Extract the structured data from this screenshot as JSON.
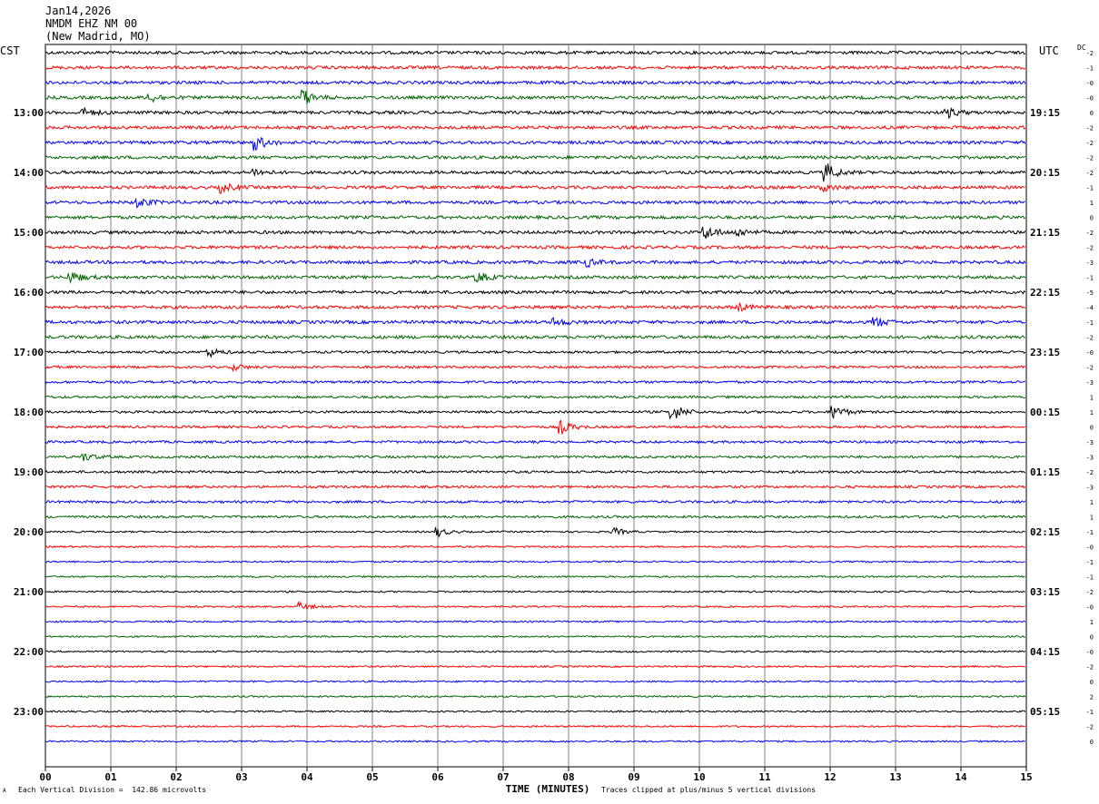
{
  "header": {
    "date": "Jan14,2026",
    "station": "NMDM EHZ NM 00",
    "location": "(New Madrid, MO)"
  },
  "left_tz": "CST",
  "right_tz": "UTC",
  "dc_label": "DC",
  "footer": {
    "scale_note": "Each Vertical Division =  142.86 microvolts",
    "clip_note": "Traces clipped at plus/minus 5 vertical divisions",
    "corner_mark": "A"
  },
  "chart_data": {
    "type": "line",
    "xlabel": "TIME (MINUTES)",
    "x_ticks": [
      "00",
      "01",
      "02",
      "03",
      "04",
      "05",
      "06",
      "07",
      "08",
      "09",
      "10",
      "11",
      "12",
      "13",
      "14",
      "15"
    ],
    "xlim": [
      0,
      15
    ],
    "trace_count": 47,
    "trace_colors": [
      "#000000",
      "#ff0000",
      "#0000ff",
      "#006400"
    ],
    "left_hour_labels": [
      "13:00",
      "14:00",
      "15:00",
      "16:00",
      "17:00",
      "18:00",
      "19:00",
      "20:00",
      "21:00",
      "22:00",
      "23:00"
    ],
    "right_hour_labels": [
      "19:15",
      "20:15",
      "21:15",
      "22:15",
      "23:15",
      "00:15",
      "01:15",
      "02:15",
      "03:15",
      "04:15",
      "05:15"
    ],
    "first_labeled_trace": 4,
    "traces_per_hour": 4,
    "dc_offsets": [
      "-2",
      "-1",
      "-0",
      "-0",
      "0",
      "-2",
      "-2",
      "-2",
      "-2",
      "-1",
      "1",
      "0",
      "-2",
      "-2",
      "-3",
      "-1",
      "-5",
      "-4",
      "-1",
      "-2",
      "-0",
      "-2",
      "-3",
      "1",
      "1",
      "0",
      "-3",
      "-3",
      "-2",
      "-3",
      "1",
      "1",
      "-1",
      "-0",
      "-1",
      "-1",
      "-2",
      "-0",
      "1",
      "0",
      "-0",
      "-2",
      "0",
      "2",
      "-1",
      "-2",
      "0"
    ],
    "events": [
      {
        "trace": 3,
        "minute": 1.6,
        "amp": 5
      },
      {
        "trace": 3,
        "minute": 3.95,
        "amp": 8
      },
      {
        "trace": 4,
        "minute": 0.6,
        "amp": 4
      },
      {
        "trace": 4,
        "minute": 13.8,
        "amp": 5
      },
      {
        "trace": 6,
        "minute": 3.2,
        "amp": 9
      },
      {
        "trace": 8,
        "minute": 3.2,
        "amp": 4
      },
      {
        "trace": 8,
        "minute": 11.95,
        "amp": 9
      },
      {
        "trace": 9,
        "minute": 2.7,
        "amp": 5
      },
      {
        "trace": 9,
        "minute": 11.9,
        "amp": 4
      },
      {
        "trace": 10,
        "minute": 1.4,
        "amp": 6
      },
      {
        "trace": 12,
        "minute": 10.1,
        "amp": 7
      },
      {
        "trace": 12,
        "minute": 10.6,
        "amp": 4
      },
      {
        "trace": 14,
        "minute": 8.3,
        "amp": 4
      },
      {
        "trace": 15,
        "minute": 0.4,
        "amp": 6
      },
      {
        "trace": 15,
        "minute": 6.6,
        "amp": 6
      },
      {
        "trace": 17,
        "minute": 10.6,
        "amp": 4
      },
      {
        "trace": 18,
        "minute": 7.8,
        "amp": 4
      },
      {
        "trace": 18,
        "minute": 12.7,
        "amp": 5
      },
      {
        "trace": 20,
        "minute": 2.5,
        "amp": 5
      },
      {
        "trace": 21,
        "minute": 2.9,
        "amp": 3
      },
      {
        "trace": 24,
        "minute": 9.6,
        "amp": 9
      },
      {
        "trace": 24,
        "minute": 12.05,
        "amp": 8
      },
      {
        "trace": 25,
        "minute": 7.9,
        "amp": 7
      },
      {
        "trace": 27,
        "minute": 0.6,
        "amp": 4
      },
      {
        "trace": 32,
        "minute": 6.0,
        "amp": 5
      },
      {
        "trace": 32,
        "minute": 8.7,
        "amp": 4
      },
      {
        "trace": 37,
        "minute": 3.9,
        "amp": 4
      }
    ]
  }
}
